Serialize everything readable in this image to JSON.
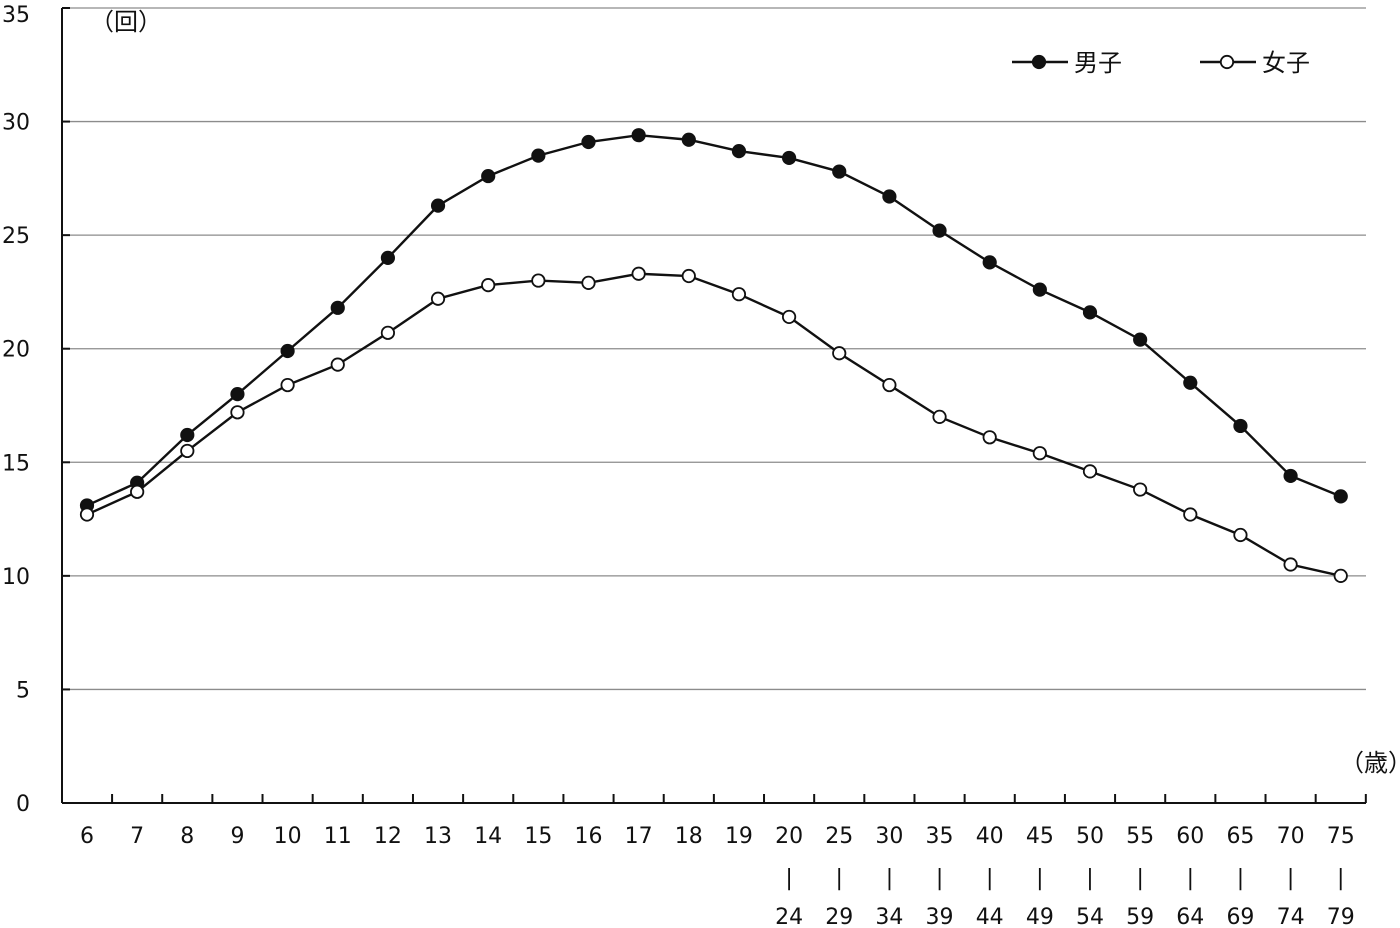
{
  "chart_data": {
    "type": "line",
    "y_unit_label": "（回）",
    "x_unit_label": "（歳）",
    "ylim": [
      0,
      35
    ],
    "yticks": [
      "0",
      "5",
      "10",
      "15",
      "20",
      "25",
      "30",
      "35"
    ],
    "grid": true,
    "legend_position": "top-right",
    "categories": [
      {
        "top": "6",
        "mid": "",
        "bottom": ""
      },
      {
        "top": "7",
        "mid": "",
        "bottom": ""
      },
      {
        "top": "8",
        "mid": "",
        "bottom": ""
      },
      {
        "top": "9",
        "mid": "",
        "bottom": ""
      },
      {
        "top": "10",
        "mid": "",
        "bottom": ""
      },
      {
        "top": "11",
        "mid": "",
        "bottom": ""
      },
      {
        "top": "12",
        "mid": "",
        "bottom": ""
      },
      {
        "top": "13",
        "mid": "",
        "bottom": ""
      },
      {
        "top": "14",
        "mid": "",
        "bottom": ""
      },
      {
        "top": "15",
        "mid": "",
        "bottom": ""
      },
      {
        "top": "16",
        "mid": "",
        "bottom": ""
      },
      {
        "top": "17",
        "mid": "",
        "bottom": ""
      },
      {
        "top": "18",
        "mid": "",
        "bottom": ""
      },
      {
        "top": "19",
        "mid": "",
        "bottom": ""
      },
      {
        "top": "20",
        "mid": "|",
        "bottom": "24"
      },
      {
        "top": "25",
        "mid": "|",
        "bottom": "29"
      },
      {
        "top": "30",
        "mid": "|",
        "bottom": "34"
      },
      {
        "top": "35",
        "mid": "|",
        "bottom": "39"
      },
      {
        "top": "40",
        "mid": "|",
        "bottom": "44"
      },
      {
        "top": "45",
        "mid": "|",
        "bottom": "49"
      },
      {
        "top": "50",
        "mid": "|",
        "bottom": "54"
      },
      {
        "top": "55",
        "mid": "|",
        "bottom": "59"
      },
      {
        "top": "60",
        "mid": "|",
        "bottom": "64"
      },
      {
        "top": "65",
        "mid": "|",
        "bottom": "69"
      },
      {
        "top": "70",
        "mid": "|",
        "bottom": "74"
      },
      {
        "top": "75",
        "mid": "|",
        "bottom": "79"
      }
    ],
    "series": [
      {
        "name": "男子",
        "marker": "filled-circle",
        "color": "#111111",
        "values": [
          13.1,
          14.1,
          16.2,
          18.0,
          19.9,
          21.8,
          24.0,
          26.3,
          27.6,
          28.5,
          29.1,
          29.4,
          29.2,
          28.7,
          28.4,
          27.8,
          26.7,
          25.2,
          23.8,
          22.6,
          21.6,
          20.4,
          18.5,
          16.6,
          14.4,
          13.5
        ]
      },
      {
        "name": "女子",
        "marker": "open-circle",
        "color": "#111111",
        "values": [
          12.7,
          13.7,
          15.5,
          17.2,
          18.4,
          19.3,
          20.7,
          22.2,
          22.8,
          23.0,
          22.9,
          23.3,
          23.2,
          22.4,
          21.4,
          19.8,
          18.4,
          17.0,
          16.1,
          15.4,
          14.6,
          13.8,
          12.7,
          11.8,
          10.5,
          10.0
        ]
      }
    ]
  }
}
